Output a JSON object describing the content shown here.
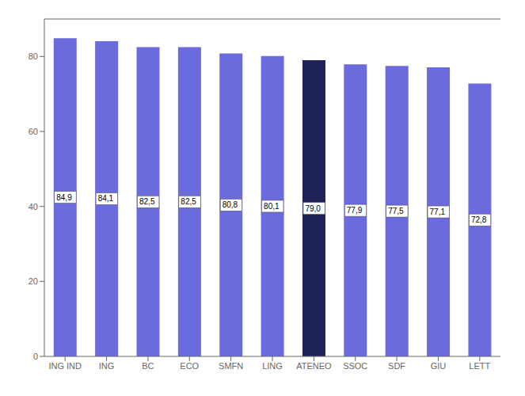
{
  "chart_data": {
    "type": "bar",
    "categories": [
      "ING IND",
      "ING",
      "BC",
      "ECO",
      "SMFN",
      "LING",
      "ATENEO",
      "SSOC",
      "SDF",
      "GIU",
      "LETT"
    ],
    "values": [
      84.9,
      84.1,
      82.5,
      82.5,
      80.8,
      80.1,
      79.0,
      77.9,
      77.5,
      77.1,
      72.8
    ],
    "value_labels": [
      "84,9",
      "84,1",
      "82,5",
      "82,5",
      "80,8",
      "80,1",
      "79,0",
      "77,9",
      "77,5",
      "77,1",
      "72,8"
    ],
    "colors": [
      "#6b6bdd",
      "#6b6bdd",
      "#6b6bdd",
      "#6b6bdd",
      "#6b6bdd",
      "#6b6bdd",
      "#1e2257",
      "#6b6bdd",
      "#6b6bdd",
      "#6b6bdd",
      "#6b6bdd"
    ],
    "ylim": [
      0,
      90
    ],
    "yticks": [
      0,
      20,
      40,
      60,
      80
    ],
    "grid": false,
    "data_labels": true
  }
}
